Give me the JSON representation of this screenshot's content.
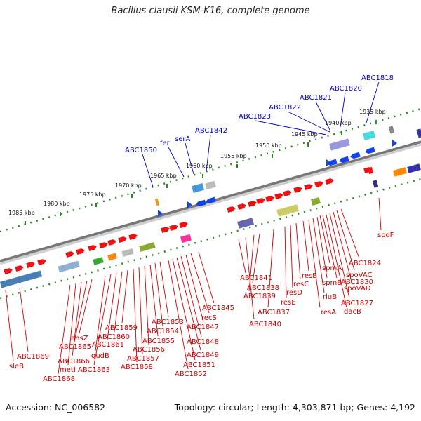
{
  "title": "Bacillus clausii KSM-K16, complete genome",
  "accession": "Accession: NC_006582",
  "topology": "Topology: circular; Length: 4,303,871 bp; Genes: 4,192",
  "colors": {
    "forward": "#ee1111",
    "reverse": "#1144ee",
    "label_red": "#cc0000",
    "label_blue": "#0000cc",
    "axis": "#888888",
    "tick": "#228822"
  },
  "scale": [
    {
      "label": "1985 kbp"
    },
    {
      "label": "1980 kbp"
    },
    {
      "label": "1975 kbp"
    },
    {
      "label": "1970 kbp"
    },
    {
      "label": "1965 kbp"
    },
    {
      "label": "1960 kbp"
    },
    {
      "label": "1955 kbp"
    },
    {
      "label": "1950 kbp"
    },
    {
      "label": "1945 kbp"
    },
    {
      "label": "1940 kbp"
    },
    {
      "label": "1935 kbp"
    }
  ],
  "labels_top": [
    "ABC1818",
    "ABC1820",
    "ABC1821",
    "ABC1822",
    "ABC1823",
    "ABC1842",
    "serA",
    "fer",
    "ABC1850"
  ],
  "labels_right": [
    "sodF",
    "ABC1824",
    "spoVAC",
    "spoVAD",
    "ABC1827",
    "dacB",
    "spmA",
    "spmB",
    "ABC1830",
    "rluB",
    "resA",
    "resB",
    "resC",
    "resD",
    "resE",
    "ABC1837",
    "ABC1838",
    "ABC1839",
    "ABC1840",
    "ABC1841"
  ],
  "labels_bottom": [
    "ABC1845",
    "recS",
    "ABC1847",
    "ABC1848",
    "ABC1849",
    "ABC1851",
    "ABC1852",
    "ABC1853",
    "ABC1854",
    "ABC1855",
    "ABC1856",
    "ABC1857",
    "ABC1858",
    "ABC1859",
    "ABC1860",
    "ABC1861",
    "ABC1863",
    "gudB",
    "ansZ",
    "ABC1865",
    "ABC1866",
    "metI",
    "ABC1868",
    "ABC1869",
    "sleB"
  ]
}
